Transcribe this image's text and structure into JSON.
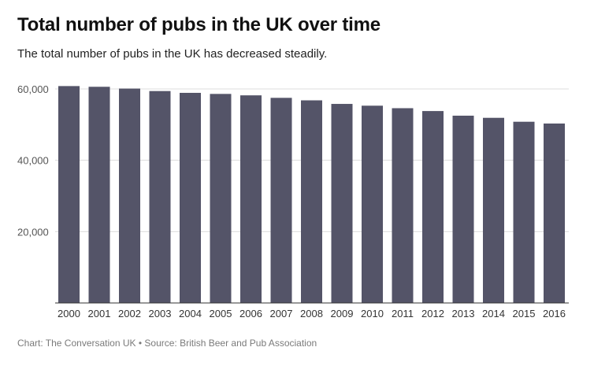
{
  "title": "Total number of pubs in the UK over time",
  "subtitle": "The total number of pubs in the UK has decreased steadily.",
  "source": "Chart: The Conversation UK • Source: British Beer and Pub Association",
  "colors": {
    "bar": "#545468",
    "grid": "#dcdcdc",
    "axis": "#333333"
  },
  "chart_data": {
    "type": "bar",
    "title": "Total number of pubs in the UK over time",
    "xlabel": "",
    "ylabel": "",
    "categories": [
      "2000",
      "2001",
      "2002",
      "2003",
      "2004",
      "2005",
      "2006",
      "2007",
      "2008",
      "2009",
      "2010",
      "2011",
      "2012",
      "2013",
      "2014",
      "2015",
      "2016"
    ],
    "values": [
      60800,
      60600,
      60100,
      59400,
      58900,
      58600,
      58200,
      57500,
      56800,
      55800,
      55300,
      54600,
      53800,
      52500,
      51900,
      50800,
      50300
    ],
    "ylim": [
      0,
      60000
    ],
    "yticks": [
      20000,
      40000,
      60000
    ],
    "ytick_labels": [
      "20,000",
      "40,000",
      "60,000"
    ],
    "grid": true,
    "legend": "none"
  }
}
